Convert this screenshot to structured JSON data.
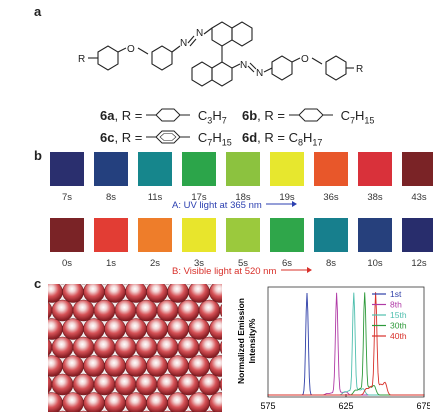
{
  "panels": {
    "a": "a",
    "b": "b",
    "c": "c"
  },
  "structure": {
    "r_left": "R",
    "r_right": "R",
    "o_left": "O",
    "o_right": "O",
    "n1": "N",
    "n2": "N",
    "n3": "N",
    "n4": "N"
  },
  "compounds": [
    {
      "id": "6a",
      "sep": ", R = ",
      "sub": "C",
      "sub_n": "3",
      "sub_h": "H",
      "sub_m": "7"
    },
    {
      "id": "6b",
      "sep": ", R = ",
      "sub": "C",
      "sub_n": "7",
      "sub_h": "H",
      "sub_m": "15"
    },
    {
      "id": "6c",
      "sep": ", R = ",
      "sub": "C",
      "sub_n": "7",
      "sub_h": "H",
      "sub_m": "15"
    },
    {
      "id": "6d",
      "sep": ", R = ",
      "plain": "C",
      "plain_n": "8",
      "plain_h": "H",
      "plain_m": "17"
    }
  ],
  "uv_row": {
    "caption": "A:  UV  light at 365 nm",
    "caption_color": "#2b3fb0",
    "swatches": [
      {
        "time": "7s",
        "color": "#2a2f6e"
      },
      {
        "time": "8s",
        "color": "#24407e"
      },
      {
        "time": "11s",
        "color": "#16868c"
      },
      {
        "time": "17s",
        "color": "#2ca54a"
      },
      {
        "time": "18s",
        "color": "#8cc23f"
      },
      {
        "time": "19s",
        "color": "#e7e72e"
      },
      {
        "time": "36s",
        "color": "#e8572a"
      },
      {
        "time": "38s",
        "color": "#d9313a"
      },
      {
        "time": "43s",
        "color": "#7a2326"
      }
    ]
  },
  "vis_row": {
    "caption": "B:  Visible light at 520 nm",
    "caption_color": "#d8302a",
    "swatches": [
      {
        "time": "0s",
        "color": "#7a2326"
      },
      {
        "time": "1s",
        "color": "#e23d34"
      },
      {
        "time": "2s",
        "color": "#ee7d2a"
      },
      {
        "time": "3s",
        "color": "#e8e52c"
      },
      {
        "time": "5s",
        "color": "#9bc93d"
      },
      {
        "time": "6s",
        "color": "#2fa64a"
      },
      {
        "time": "8s",
        "color": "#177f8d"
      },
      {
        "time": "10s",
        "color": "#26407c"
      },
      {
        "time": "12s",
        "color": "#282d6c"
      }
    ]
  },
  "chart_data": {
    "type": "line",
    "xlabel": "",
    "ylabel": "Normalized Emission Intensity/%",
    "ylabel_line1": "Normalized Emission",
    "ylabel_line2": "Intensity/%",
    "xlim": [
      575,
      675
    ],
    "xticks": [
      "575",
      "625",
      "675"
    ],
    "legend_position": "top-right",
    "series": [
      {
        "name": "1st",
        "color": "#2f3fa8",
        "peak": 600
      },
      {
        "name": "8th",
        "color": "#b03aa6",
        "peak": 619
      },
      {
        "name": "15th",
        "color": "#4fbfae",
        "peak": 630
      },
      {
        "name": "30th",
        "color": "#2e9a3a",
        "peak": 637
      },
      {
        "name": "40th",
        "color": "#d8302a",
        "peak": 644
      }
    ]
  }
}
